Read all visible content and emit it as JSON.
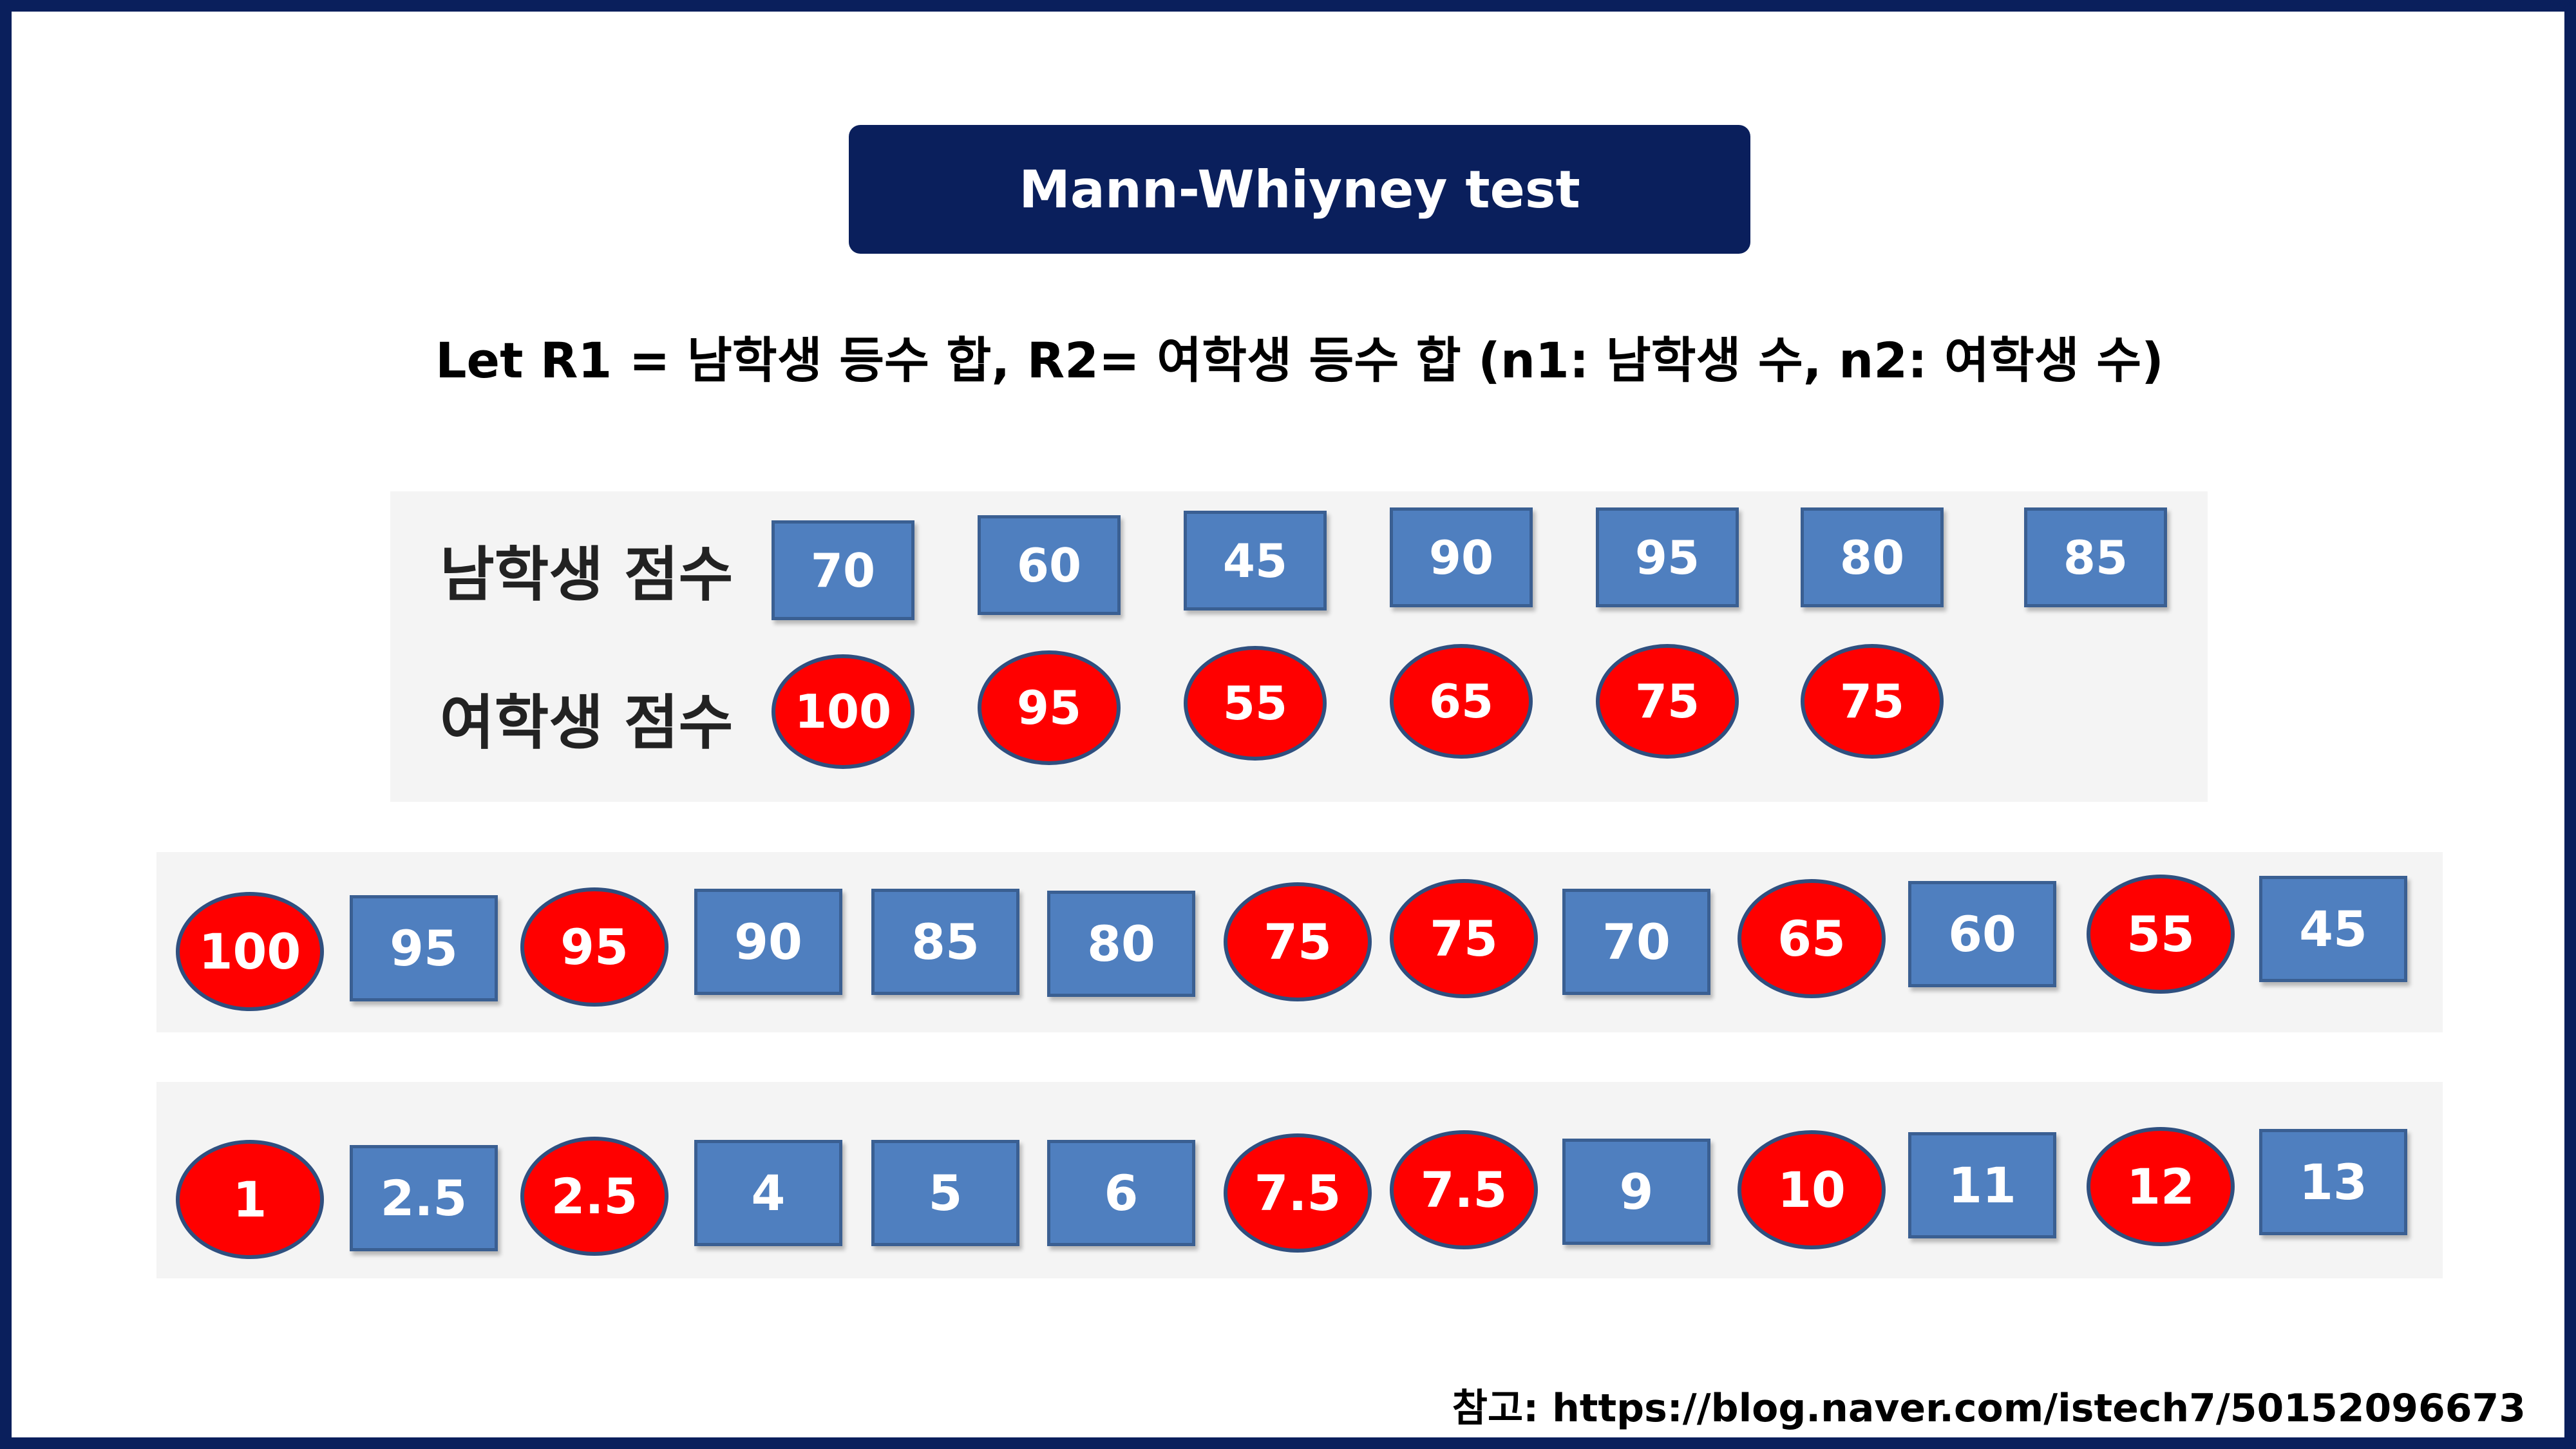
{
  "title": "Mann-Whiyney test",
  "subtitle": "Let R1 = 남학생 등수 합, R2= 여학생 등수 합 (n1: 남학생 수, n2: 여학생 수)",
  "scores": {
    "male_label": "남학생 점수",
    "female_label": "여학생 점수",
    "male": [
      "70",
      "60",
      "45",
      "90",
      "95",
      "80",
      "85"
    ],
    "female": [
      "100",
      "95",
      "55",
      "65",
      "75",
      "75"
    ]
  },
  "sorted": {
    "items": [
      {
        "value": "100",
        "group": "female"
      },
      {
        "value": "95",
        "group": "male"
      },
      {
        "value": "95",
        "group": "female"
      },
      {
        "value": "90",
        "group": "male"
      },
      {
        "value": "85",
        "group": "male"
      },
      {
        "value": "80",
        "group": "male"
      },
      {
        "value": "75",
        "group": "female"
      },
      {
        "value": "75",
        "group": "female"
      },
      {
        "value": "70",
        "group": "male"
      },
      {
        "value": "65",
        "group": "female"
      },
      {
        "value": "60",
        "group": "male"
      },
      {
        "value": "55",
        "group": "female"
      },
      {
        "value": "45",
        "group": "male"
      }
    ]
  },
  "ranks": {
    "items": [
      {
        "value": "1",
        "group": "female"
      },
      {
        "value": "2.5",
        "group": "male"
      },
      {
        "value": "2.5",
        "group": "female"
      },
      {
        "value": "4",
        "group": "male"
      },
      {
        "value": "5",
        "group": "male"
      },
      {
        "value": "6",
        "group": "male"
      },
      {
        "value": "7.5",
        "group": "female"
      },
      {
        "value": "7.5",
        "group": "female"
      },
      {
        "value": "9",
        "group": "male"
      },
      {
        "value": "10",
        "group": "female"
      },
      {
        "value": "11",
        "group": "male"
      },
      {
        "value": "12",
        "group": "female"
      },
      {
        "value": "13",
        "group": "male"
      }
    ]
  },
  "footer": "참고: https://blog.naver.com/istech7/50152096673",
  "colors": {
    "navy": "#0a1f5c",
    "male_fill": "#4f7fbf",
    "female_fill": "#ff0000"
  }
}
